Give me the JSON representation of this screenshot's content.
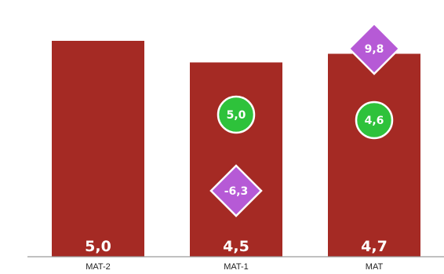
{
  "chart_data": {
    "type": "bar",
    "categories": [
      "MAT-2",
      "MAT-1",
      "MAT"
    ],
    "values": [
      5.0,
      4.5,
      4.7
    ],
    "value_labels": [
      "5,0",
      "4,5",
      "4,7"
    ],
    "ylim": [
      0,
      5.8
    ],
    "markers": [
      {
        "shape": "circle",
        "points": [
          {
            "category": "MAT-1",
            "label": "5,0"
          },
          {
            "category": "MAT",
            "label": "4,6"
          }
        ]
      },
      {
        "shape": "diamond",
        "points": [
          {
            "category": "MAT-1",
            "label": "-6,3"
          },
          {
            "category": "MAT",
            "label": "9,8"
          }
        ]
      }
    ],
    "colors": {
      "bar": "#a52a24",
      "circle": "#2ec23b",
      "diamond": "#b65ad6",
      "axis": "#9a9a9a"
    },
    "grid": false,
    "legend": "none"
  }
}
